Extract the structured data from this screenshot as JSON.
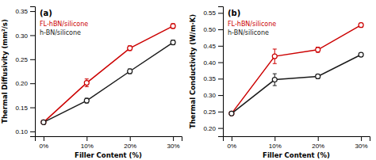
{
  "chart_data": [
    {
      "type": "line",
      "title": "(a)",
      "x_label": "Filler Content (%)",
      "y_label": "Thermal Diffusivity (mm²/s)",
      "x": [
        0,
        10,
        20,
        30
      ],
      "xlim": [
        -2,
        32
      ],
      "xticks": [
        {
          "value": 0,
          "label": "0%"
        },
        {
          "value": 10,
          "label": "10%"
        },
        {
          "value": 20,
          "label": "20%"
        },
        {
          "value": 30,
          "label": "30%"
        }
      ],
      "ylim": [
        0.09,
        0.36
      ],
      "yticks": [
        {
          "value": 0.1,
          "label": "0.10"
        },
        0.15,
        {
          "value": 0.2,
          "label": "0.20"
        },
        0.25,
        {
          "value": 0.3,
          "label": "0.30"
        },
        0.35
      ],
      "series": [
        {
          "name": "FL-hBN/silicone",
          "color": "#cc0000",
          "marker": "circle",
          "line_style": "solid",
          "values": [
            0.119,
            0.201,
            0.273,
            0.319
          ],
          "errors": [
            0.0,
            0.008,
            0.005,
            0.005
          ]
        },
        {
          "name": "h-BN/silicone",
          "color": "#1a1a1a",
          "marker": "circle",
          "line_style": "solid",
          "values": [
            0.119,
            0.164,
            0.225,
            0.285
          ],
          "errors": [
            0.0,
            0.005,
            0.005,
            0.005
          ]
        }
      ]
    },
    {
      "type": "line",
      "title": "(b)",
      "x_label": "Filler Content (%)",
      "y_label": "Thermal Conductivity (W/m·K)",
      "x": [
        0,
        10,
        20,
        30
      ],
      "xlim": [
        -2,
        32
      ],
      "xticks": [
        {
          "value": 0,
          "label": "0%"
        },
        {
          "value": 10,
          "label": "10%"
        },
        {
          "value": 20,
          "label": "20%"
        },
        {
          "value": 30,
          "label": "30%"
        }
      ],
      "ylim": [
        0.175,
        0.57
      ],
      "yticks": [
        {
          "value": 0.2,
          "label": "0.20"
        },
        0.25,
        {
          "value": 0.3,
          "label": "0.30"
        },
        0.35,
        {
          "value": 0.4,
          "label": "0.40"
        },
        0.45,
        {
          "value": 0.5,
          "label": "0.50"
        },
        0.55
      ],
      "series": [
        {
          "name": "FL-hBN/silicone",
          "color": "#cc0000",
          "marker": "circle",
          "line_style": "solid",
          "values": [
            0.244,
            0.418,
            0.438,
            0.513
          ],
          "errors": [
            0.0,
            0.022,
            0.008,
            0.006
          ]
        },
        {
          "name": "h-BN/silicone",
          "color": "#1a1a1a",
          "marker": "circle",
          "line_style": "solid",
          "values": [
            0.244,
            0.347,
            0.357,
            0.423
          ],
          "errors": [
            0.0,
            0.018,
            0.006,
            0.006
          ]
        }
      ]
    }
  ]
}
